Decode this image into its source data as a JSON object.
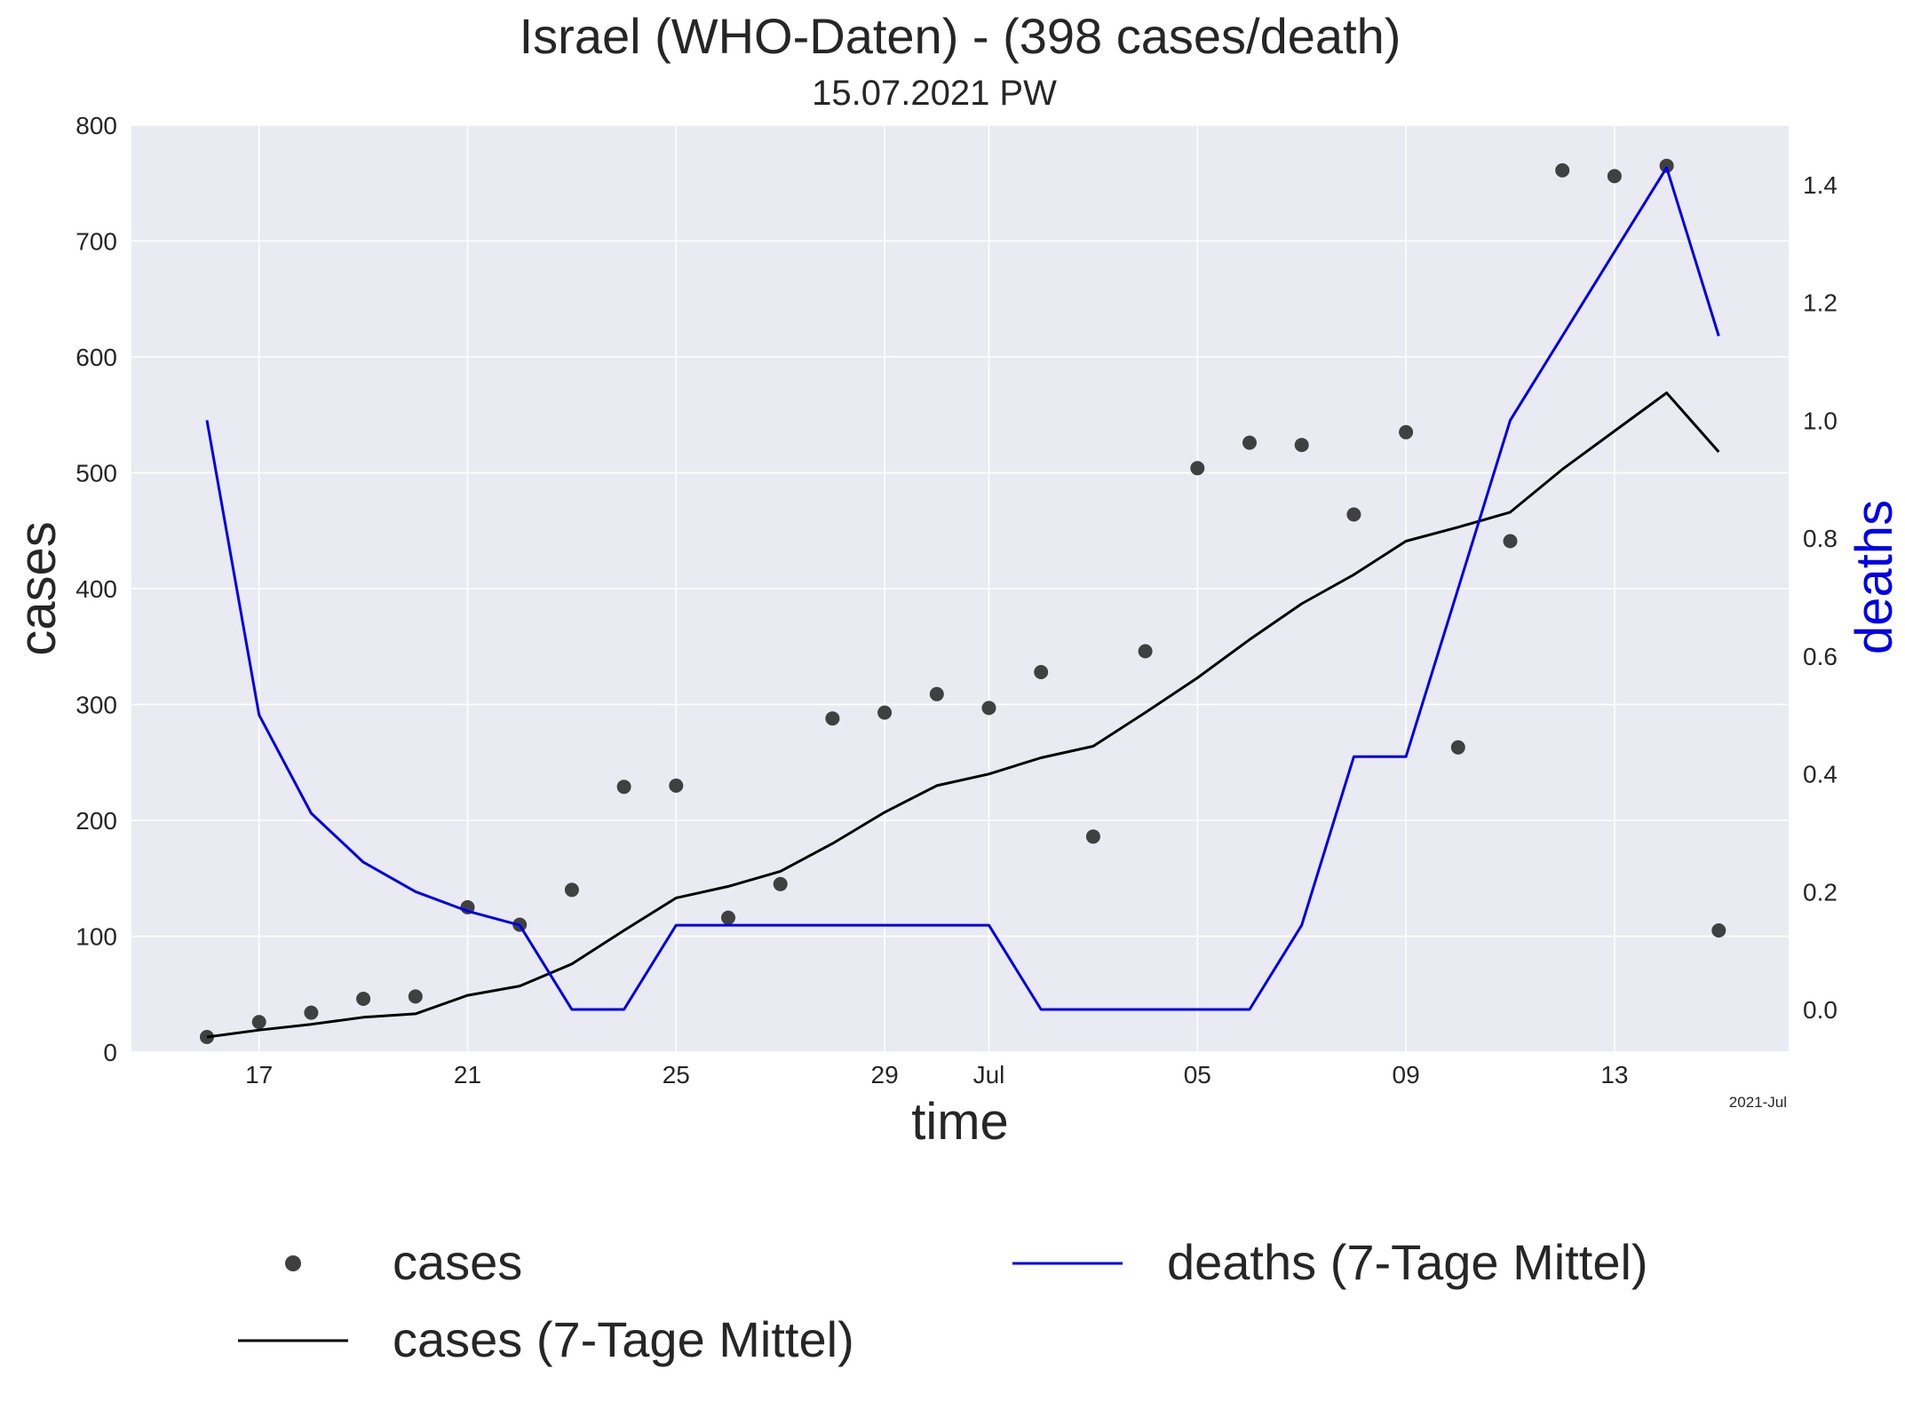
{
  "chart_data": {
    "type": "line",
    "title": "Israel (WHO-Daten) - (398 cases/death)",
    "subtitle": "15.07.2021 PW",
    "xlabel": "time",
    "ylabel": "cases",
    "ylabel_right": "deaths",
    "x_offset_label": "2021-Jul",
    "x": [
      "2021-06-16",
      "2021-06-17",
      "2021-06-18",
      "2021-06-19",
      "2021-06-20",
      "2021-06-21",
      "2021-06-22",
      "2021-06-23",
      "2021-06-24",
      "2021-06-25",
      "2021-06-26",
      "2021-06-27",
      "2021-06-28",
      "2021-06-29",
      "2021-06-30",
      "2021-07-01",
      "2021-07-02",
      "2021-07-03",
      "2021-07-04",
      "2021-07-05",
      "2021-07-06",
      "2021-07-07",
      "2021-07-08",
      "2021-07-09",
      "2021-07-10",
      "2021-07-11",
      "2021-07-12",
      "2021-07-13",
      "2021-07-14",
      "2021-07-15"
    ],
    "x_ticks": [
      {
        "date": "2021-06-17",
        "label": "17"
      },
      {
        "date": "2021-06-21",
        "label": "21"
      },
      {
        "date": "2021-06-25",
        "label": "25"
      },
      {
        "date": "2021-06-29",
        "label": "29"
      },
      {
        "date": "2021-07-01",
        "label": "Jul"
      },
      {
        "date": "2021-07-05",
        "label": "05"
      },
      {
        "date": "2021-07-09",
        "label": "09"
      },
      {
        "date": "2021-07-13",
        "label": "13"
      }
    ],
    "ylim": [
      0,
      800
    ],
    "y_ticks": [
      "0",
      "100",
      "200",
      "300",
      "400",
      "500",
      "600",
      "700",
      "800"
    ],
    "ylim_right": [
      -0.07,
      1.5
    ],
    "y_ticks_right": [
      "0.0",
      "0.2",
      "0.4",
      "0.6",
      "0.8",
      "1.0",
      "1.2",
      "1.4"
    ],
    "grid": true,
    "legend_position": "bottom",
    "series": [
      {
        "name": "cases",
        "kind": "scatter",
        "color": "#404040",
        "axis": "left",
        "values": [
          13,
          26,
          34,
          46,
          48,
          125,
          110,
          140,
          229,
          230,
          116,
          145,
          288,
          293,
          309,
          297,
          328,
          186,
          346,
          504,
          526,
          524,
          464,
          535,
          263,
          441,
          761,
          756,
          765,
          105
        ]
      },
      {
        "name": "cases (7-Tage Mittel)",
        "kind": "line",
        "color": "#000000",
        "axis": "left",
        "values": [
          13,
          19,
          24,
          30,
          33,
          49,
          57,
          76,
          105,
          133,
          143,
          156,
          180,
          207,
          230,
          240,
          254,
          264,
          293,
          323,
          356,
          387,
          412,
          441,
          453,
          466,
          503,
          536,
          569,
          518
        ]
      },
      {
        "name": "deaths (7-Tage Mittel)",
        "kind": "line",
        "color": "#0000ee",
        "axis": "right",
        "values": [
          1.0,
          0.5,
          0.333,
          0.25,
          0.2,
          0.167,
          0.143,
          0.0,
          0.0,
          0.143,
          0.143,
          0.143,
          0.143,
          0.143,
          0.143,
          0.143,
          0.0,
          0.0,
          0.0,
          0.0,
          0.0,
          0.143,
          0.429,
          0.429,
          0.714,
          1.0,
          1.143,
          1.286,
          1.429,
          1.143
        ]
      }
    ]
  }
}
